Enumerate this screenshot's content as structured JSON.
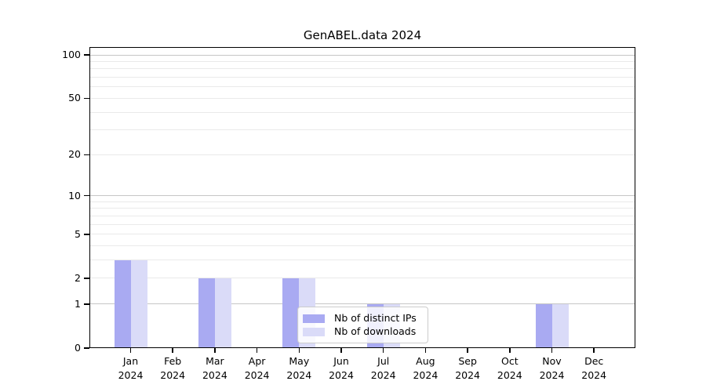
{
  "chart_data": {
    "type": "bar",
    "title": "GenABEL.data 2024",
    "categories": [
      "Jan 2024",
      "Feb 2024",
      "Mar 2024",
      "Apr 2024",
      "May 2024",
      "Jun 2024",
      "Jul 2024",
      "Aug 2024",
      "Sep 2024",
      "Oct 2024",
      "Nov 2024",
      "Dec 2024"
    ],
    "series": [
      {
        "name": "Nb of distinct IPs",
        "color": "#a9aaf2",
        "values": [
          3,
          0,
          2,
          0,
          2,
          0,
          1,
          0,
          0,
          0,
          1,
          0
        ]
      },
      {
        "name": "Nb of downloads",
        "color": "#dadbf8",
        "values": [
          3,
          0,
          2,
          0,
          2,
          0,
          1,
          0,
          0,
          0,
          1,
          0
        ]
      }
    ],
    "xlabel": "",
    "ylabel": "",
    "y_scale": "log10(1+x)",
    "ylim": [
      0,
      113
    ],
    "y_ticks": [
      0,
      1,
      2,
      5,
      10,
      20,
      50,
      100
    ],
    "y_grid_major": [
      1,
      10,
      100
    ],
    "y_grid_minor": [
      2,
      3,
      4,
      5,
      6,
      7,
      8,
      9,
      20,
      30,
      40,
      50,
      60,
      70,
      80,
      90
    ],
    "grid": "on",
    "legend_position": "lower center"
  },
  "colors": {
    "grid_major": "#c6c6c6",
    "grid_minor": "#eaeaea",
    "axis": "#000000",
    "legend_border": "#cccccc"
  }
}
